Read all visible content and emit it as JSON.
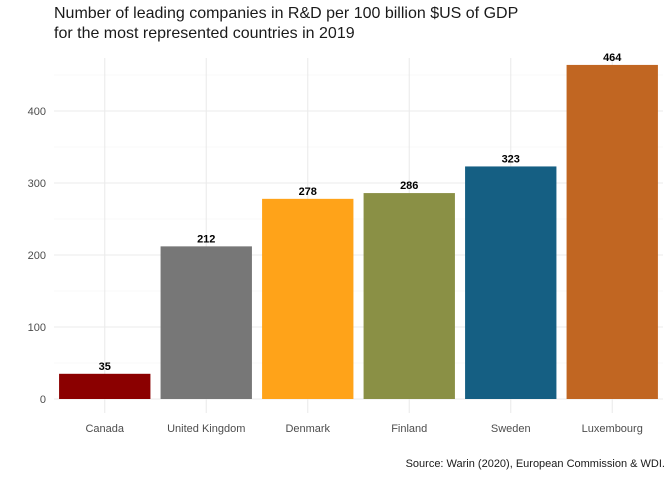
{
  "title_lines": [
    "Number of leading companies in R&D per 100 billion $US of GDP",
    "for the most represented countries in 2019"
  ],
  "caption": "Source: Warin (2020), European Commission & WDI.",
  "chart_data": {
    "type": "bar",
    "categories": [
      "Canada",
      "United Kingdom",
      "Denmark",
      "Finland",
      "Sweden",
      "Luxembourg"
    ],
    "values": [
      35,
      212,
      278,
      286,
      323,
      464
    ],
    "data_labels": [
      "35",
      "212",
      "278",
      "286",
      "323",
      "464"
    ],
    "colors": [
      "#8b0000",
      "#777777",
      "#ffa319",
      "#8a9045",
      "#155f83",
      "#c16622"
    ],
    "ylim": [
      0,
      475
    ],
    "yticks": [
      0,
      100,
      200,
      300,
      400
    ],
    "grid": true,
    "xlabel": "",
    "ylabel": ""
  }
}
